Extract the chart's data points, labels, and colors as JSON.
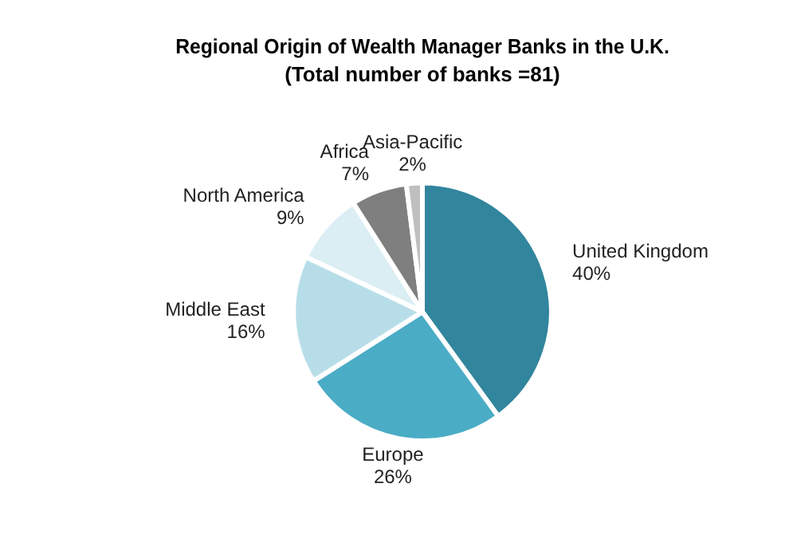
{
  "chart_data": {
    "type": "pie",
    "title": "Regional Origin of Wealth Manager Banks in the U.K.",
    "subtitle": "(Total number of banks =81)",
    "categories": [
      "United Kingdom",
      "Europe",
      "Middle East",
      "North America",
      "Africa",
      "Asia-Pacific"
    ],
    "values": [
      40,
      26,
      16,
      9,
      7,
      2
    ],
    "colors": [
      "#31859c",
      "#4bacc6",
      "#b7dee8",
      "#dbeef4",
      "#7f7f7f",
      "#bfbfbf"
    ],
    "value_labels": [
      "40%",
      "26%",
      "16%",
      "9%",
      "7%",
      "2%"
    ],
    "legend": false
  }
}
